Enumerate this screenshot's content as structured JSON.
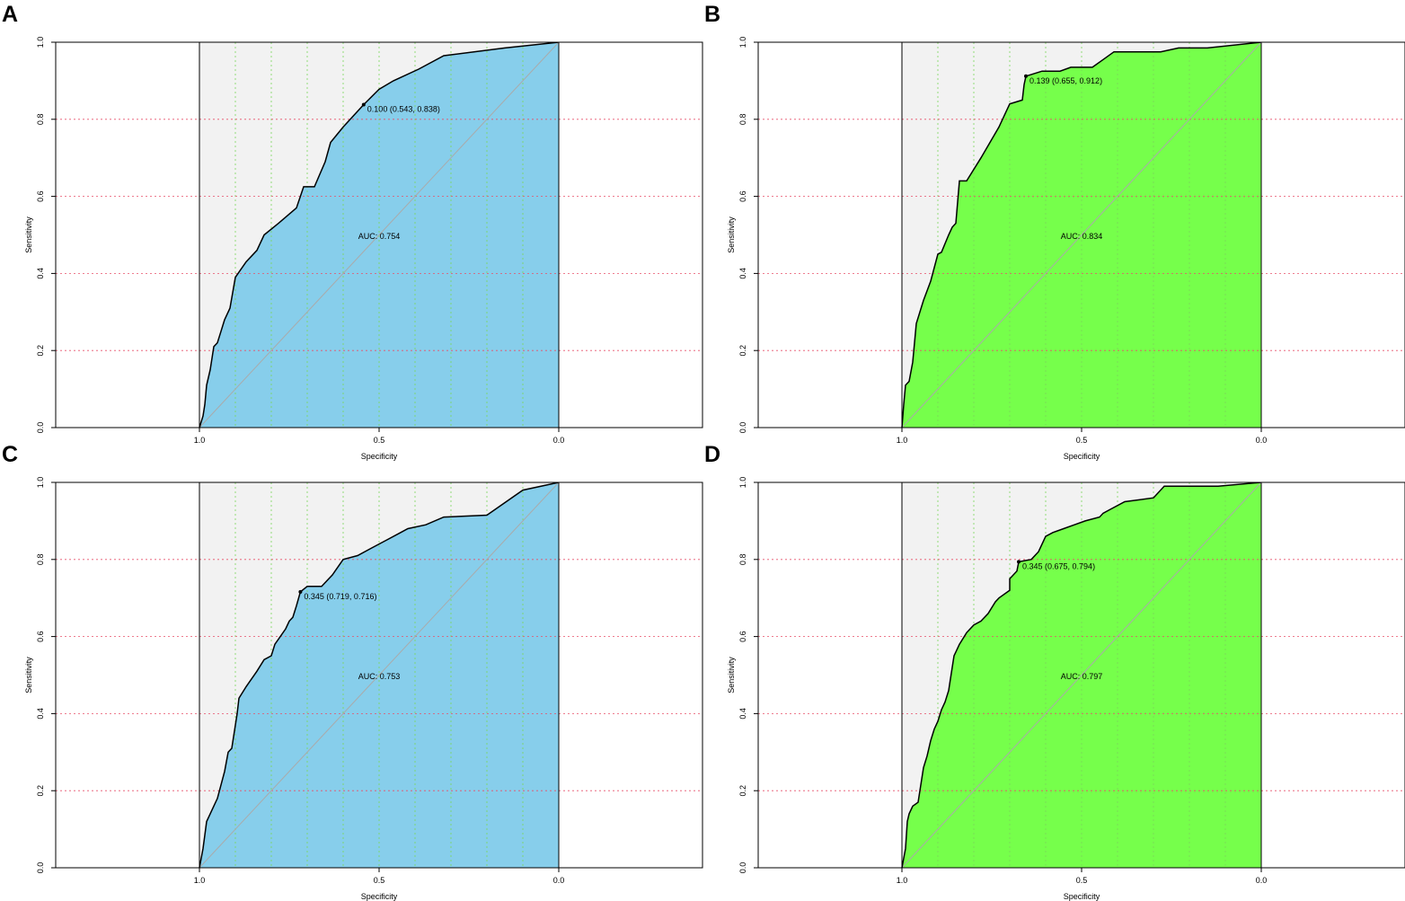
{
  "chart_data": [
    {
      "panel_label": "A",
      "type": "line",
      "xlabel": "Specificity",
      "ylabel": "Sensitivity",
      "xlim": [
        1.4,
        -0.4
      ],
      "ylim": [
        0,
        1
      ],
      "xticks": [
        "1.0",
        "0.5",
        "0.0"
      ],
      "yticks": [
        "0.0",
        "0.2",
        "0.4",
        "0.6",
        "0.8",
        "1.0"
      ],
      "fill_color": "#87ceeb",
      "auc_label": "AUC: 0.754",
      "threshold_label": "0.100 (0.543, 0.838)",
      "threshold_point": [
        0.543,
        0.838
      ],
      "curve": [
        [
          1,
          0
        ],
        [
          0.99,
          0.03
        ],
        [
          0.985,
          0.06
        ],
        [
          0.98,
          0.11
        ],
        [
          0.97,
          0.15
        ],
        [
          0.96,
          0.21
        ],
        [
          0.95,
          0.22
        ],
        [
          0.94,
          0.25
        ],
        [
          0.93,
          0.28
        ],
        [
          0.915,
          0.31
        ],
        [
          0.9,
          0.39
        ],
        [
          0.87,
          0.43
        ],
        [
          0.84,
          0.46
        ],
        [
          0.82,
          0.5
        ],
        [
          0.78,
          0.53
        ],
        [
          0.73,
          0.57
        ],
        [
          0.71,
          0.625
        ],
        [
          0.68,
          0.625
        ],
        [
          0.65,
          0.69
        ],
        [
          0.635,
          0.74
        ],
        [
          0.6,
          0.78
        ],
        [
          0.543,
          0.838
        ],
        [
          0.5,
          0.878
        ],
        [
          0.46,
          0.9
        ],
        [
          0.39,
          0.93
        ],
        [
          0.32,
          0.965
        ],
        [
          0.15,
          0.985
        ],
        [
          0,
          1
        ]
      ]
    },
    {
      "panel_label": "B",
      "type": "line",
      "xlabel": "Specificity",
      "ylabel": "Sensitivity",
      "xlim": [
        1.4,
        -0.4
      ],
      "ylim": [
        0,
        1
      ],
      "xticks": [
        "1.0",
        "0.5",
        "0.0"
      ],
      "yticks": [
        "0.0",
        "0.2",
        "0.4",
        "0.6",
        "0.8",
        "1.0"
      ],
      "fill_color": "#76ff4b",
      "auc_label": "AUC: 0.834",
      "threshold_label": "0.139 (0.655, 0.912)",
      "threshold_point": [
        0.655,
        0.912
      ],
      "curve": [
        [
          1,
          0
        ],
        [
          0.995,
          0.06
        ],
        [
          0.99,
          0.11
        ],
        [
          0.98,
          0.12
        ],
        [
          0.97,
          0.17
        ],
        [
          0.96,
          0.27
        ],
        [
          0.94,
          0.33
        ],
        [
          0.92,
          0.38
        ],
        [
          0.9,
          0.45
        ],
        [
          0.89,
          0.455
        ],
        [
          0.87,
          0.5
        ],
        [
          0.86,
          0.52
        ],
        [
          0.85,
          0.53
        ],
        [
          0.84,
          0.64
        ],
        [
          0.82,
          0.64
        ],
        [
          0.78,
          0.7
        ],
        [
          0.73,
          0.78
        ],
        [
          0.7,
          0.84
        ],
        [
          0.665,
          0.85
        ],
        [
          0.66,
          0.89
        ],
        [
          0.655,
          0.912
        ],
        [
          0.61,
          0.925
        ],
        [
          0.56,
          0.925
        ],
        [
          0.53,
          0.935
        ],
        [
          0.47,
          0.935
        ],
        [
          0.44,
          0.955
        ],
        [
          0.41,
          0.975
        ],
        [
          0.28,
          0.975
        ],
        [
          0.23,
          0.985
        ],
        [
          0.15,
          0.985
        ],
        [
          0,
          1
        ]
      ]
    },
    {
      "panel_label": "C",
      "type": "line",
      "xlabel": "Specificity",
      "ylabel": "Sensitivity",
      "xlim": [
        1.4,
        -0.4
      ],
      "ylim": [
        0,
        1
      ],
      "xticks": [
        "1.0",
        "0.5",
        "0.0"
      ],
      "yticks": [
        "0.0",
        "0.2",
        "0.4",
        "0.6",
        "0.8",
        "1.0"
      ],
      "fill_color": "#87ceeb",
      "auc_label": "AUC: 0.753",
      "threshold_label": "0.345 (0.719, 0.716)",
      "threshold_point": [
        0.719,
        0.716
      ],
      "curve": [
        [
          1,
          0
        ],
        [
          0.99,
          0.05
        ],
        [
          0.98,
          0.12
        ],
        [
          0.97,
          0.14
        ],
        [
          0.95,
          0.18
        ],
        [
          0.93,
          0.25
        ],
        [
          0.92,
          0.3
        ],
        [
          0.91,
          0.31
        ],
        [
          0.9,
          0.37
        ],
        [
          0.895,
          0.4
        ],
        [
          0.89,
          0.44
        ],
        [
          0.87,
          0.47
        ],
        [
          0.84,
          0.51
        ],
        [
          0.82,
          0.54
        ],
        [
          0.8,
          0.55
        ],
        [
          0.79,
          0.58
        ],
        [
          0.76,
          0.62
        ],
        [
          0.75,
          0.64
        ],
        [
          0.74,
          0.65
        ],
        [
          0.73,
          0.68
        ],
        [
          0.719,
          0.716
        ],
        [
          0.7,
          0.73
        ],
        [
          0.66,
          0.73
        ],
        [
          0.63,
          0.76
        ],
        [
          0.6,
          0.8
        ],
        [
          0.56,
          0.81
        ],
        [
          0.52,
          0.83
        ],
        [
          0.48,
          0.85
        ],
        [
          0.44,
          0.87
        ],
        [
          0.42,
          0.88
        ],
        [
          0.37,
          0.89
        ],
        [
          0.32,
          0.91
        ],
        [
          0.2,
          0.915
        ],
        [
          0.1,
          0.98
        ],
        [
          0,
          1
        ]
      ]
    },
    {
      "panel_label": "D",
      "type": "line",
      "xlabel": "Specificity",
      "ylabel": "Sensitivity",
      "xlim": [
        1.4,
        -0.4
      ],
      "ylim": [
        0,
        1
      ],
      "xticks": [
        "1.0",
        "0.5",
        "0.0"
      ],
      "yticks": [
        "0.0",
        "0.2",
        "0.4",
        "0.6",
        "0.8",
        "1.0"
      ],
      "fill_color": "#76ff4b",
      "auc_label": "AUC: 0.797",
      "threshold_label": "0.345 (0.675, 0.794)",
      "threshold_point": [
        0.675,
        0.794
      ],
      "curve": [
        [
          1,
          0
        ],
        [
          0.99,
          0.05
        ],
        [
          0.985,
          0.12
        ],
        [
          0.98,
          0.14
        ],
        [
          0.97,
          0.16
        ],
        [
          0.955,
          0.17
        ],
        [
          0.95,
          0.2
        ],
        [
          0.94,
          0.26
        ],
        [
          0.93,
          0.29
        ],
        [
          0.92,
          0.33
        ],
        [
          0.91,
          0.36
        ],
        [
          0.9,
          0.38
        ],
        [
          0.89,
          0.41
        ],
        [
          0.88,
          0.43
        ],
        [
          0.87,
          0.46
        ],
        [
          0.865,
          0.49
        ],
        [
          0.86,
          0.52
        ],
        [
          0.855,
          0.55
        ],
        [
          0.85,
          0.56
        ],
        [
          0.84,
          0.58
        ],
        [
          0.82,
          0.61
        ],
        [
          0.8,
          0.63
        ],
        [
          0.78,
          0.64
        ],
        [
          0.76,
          0.66
        ],
        [
          0.74,
          0.69
        ],
        [
          0.73,
          0.7
        ],
        [
          0.7,
          0.72
        ],
        [
          0.7,
          0.75
        ],
        [
          0.68,
          0.77
        ],
        [
          0.675,
          0.794
        ],
        [
          0.64,
          0.8
        ],
        [
          0.62,
          0.82
        ],
        [
          0.6,
          0.86
        ],
        [
          0.58,
          0.87
        ],
        [
          0.55,
          0.88
        ],
        [
          0.52,
          0.89
        ],
        [
          0.49,
          0.9
        ],
        [
          0.45,
          0.91
        ],
        [
          0.44,
          0.92
        ],
        [
          0.42,
          0.93
        ],
        [
          0.38,
          0.95
        ],
        [
          0.3,
          0.96
        ],
        [
          0.27,
          0.99
        ],
        [
          0.12,
          0.99
        ],
        [
          0,
          1
        ]
      ]
    }
  ]
}
